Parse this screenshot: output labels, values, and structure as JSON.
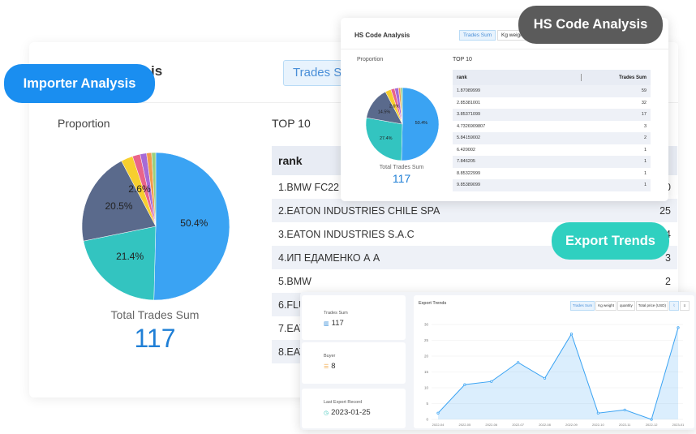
{
  "importer": {
    "badge": "Importer Analysis",
    "title_partial": "is",
    "tab_partial": "Trades Su",
    "proportion_label": "Proportion",
    "top10_label": "TOP 10",
    "table_header": "rank",
    "table_header_value_partial": "n",
    "rows": [
      {
        "name": "1.BMW FC22",
        "value": "0"
      },
      {
        "name": "2.EATON INDUSTRIES CHILE SPA",
        "value": "25"
      },
      {
        "name": "3.EATON INDUSTRIES S.A.C",
        "value": "4"
      },
      {
        "name": "4.ИП ЕДАМЕНКО А А",
        "value": "3"
      },
      {
        "name": "5.BMW",
        "value": "2"
      },
      {
        "name": "6.FLU",
        "value": ""
      },
      {
        "name": "7.EAT",
        "value": ""
      },
      {
        "name": "8.EAT",
        "value": ""
      }
    ],
    "pie": {
      "slice_labels": [
        "50.4%",
        "21.4%",
        "20.5%",
        "2.6%"
      ],
      "fractions": [
        0.504,
        0.214,
        0.205,
        0.026,
        0.017,
        0.014,
        0.011,
        0.009
      ],
      "colors": [
        "#3aa3f3",
        "#33c4c0",
        "#5a6a8c",
        "#f7cf2e",
        "#e9648a",
        "#a76ad6",
        "#f39a4b",
        "#9ad07d"
      ]
    },
    "total_label": "Total Trades Sum",
    "total_value": "117"
  },
  "hs": {
    "badge": "HS Code Analysis",
    "title": "HS Code Analysis",
    "tab_active": "Trades Sum",
    "tab_other": "Kg weigh",
    "proportion_label": "Proportion",
    "top10_label": "TOP 10",
    "table_header_left": "rank",
    "table_header_right": "Trades Sum",
    "rows": [
      {
        "code": "1.87089999",
        "value": "59"
      },
      {
        "code": "2.85381001",
        "value": "32"
      },
      {
        "code": "3.85371099",
        "value": "17"
      },
      {
        "code": "4.7326909807",
        "value": "3"
      },
      {
        "code": "5.84159002",
        "value": "2"
      },
      {
        "code": "6.420002",
        "value": "1"
      },
      {
        "code": "7.846205",
        "value": "1"
      },
      {
        "code": "8.85322999",
        "value": "1"
      },
      {
        "code": "9.85389099",
        "value": "1"
      }
    ],
    "pie": {
      "slice_labels": [
        "50.4%",
        "27.4%",
        "14.5%",
        "2.6%"
      ],
      "fractions": [
        0.504,
        0.274,
        0.145,
        0.026,
        0.017,
        0.017,
        0.009,
        0.008
      ],
      "colors": [
        "#3aa3f3",
        "#33c4c0",
        "#5a6a8c",
        "#f7cf2e",
        "#e9648a",
        "#a76ad6",
        "#f39a4b",
        "#9ad07d"
      ]
    },
    "total_label": "Total Trades Sum",
    "total_value": "117"
  },
  "export": {
    "badge": "Export Trends",
    "cards": [
      {
        "label": "Trades Sum",
        "value": "117",
        "icon": "chart-icon"
      },
      {
        "label": "Buyer",
        "value": "8",
        "icon": "list-icon"
      },
      {
        "label": "Last Export Record",
        "value": "2023-01-25",
        "icon": "clock-icon"
      }
    ],
    "chart_title": "Export Trends",
    "tabs": [
      "Trades Sum",
      "Kg weight",
      "quantity",
      "Total price (USD)"
    ],
    "icon_tabs": [
      "line-chart-icon",
      "menu-icon"
    ]
  },
  "chart_data": {
    "type": "area",
    "title": "Export Trends",
    "x": [
      "2022-04",
      "2022-05",
      "2022-06",
      "2022-07",
      "2022-08",
      "2022-09",
      "2022-10",
      "2022-11",
      "2022-12",
      "2023-01"
    ],
    "y_ticks": [
      "0",
      "5",
      "10",
      "15",
      "20",
      "25",
      "30"
    ],
    "ylim": [
      0,
      30
    ],
    "series": [
      {
        "values": [
          2,
          11,
          12,
          18,
          13,
          27,
          2,
          3,
          0,
          29
        ]
      }
    ],
    "color": "#3aa3f3"
  }
}
